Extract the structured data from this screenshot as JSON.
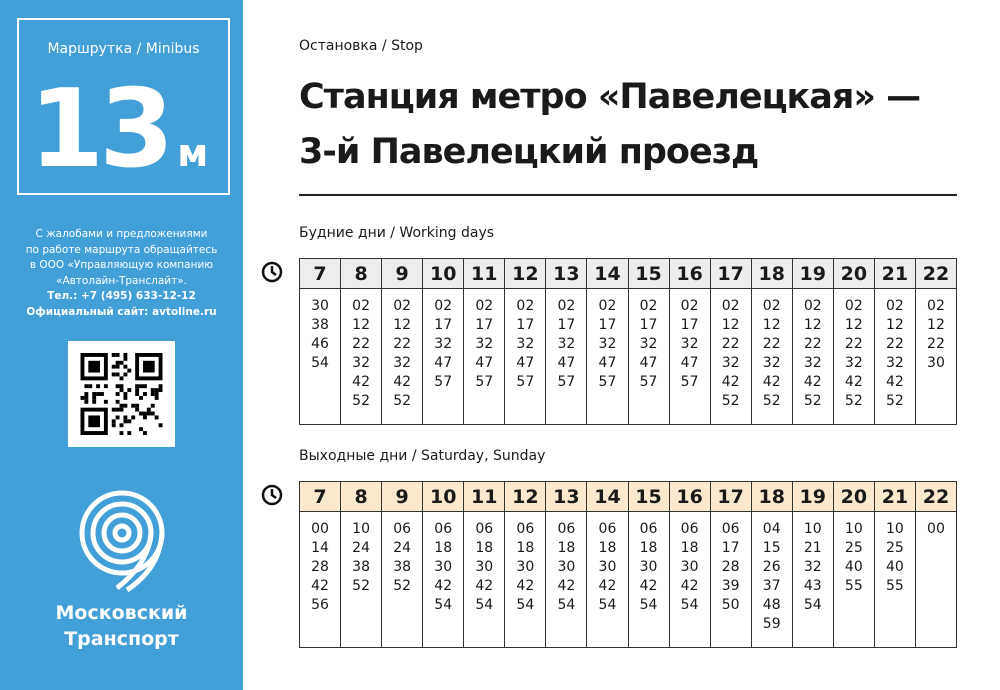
{
  "sidebar": {
    "route_label": "Маршрутка / Minibus",
    "route_number": "13",
    "route_suffix": "м",
    "info_lines": [
      "С жалобами и предложениями",
      "по работе маршрута обращайтесь",
      "в ООО «Управляющую компанию",
      "«Автолайн-Транслайт»."
    ],
    "phone": "Тел.: +7 (495) 633-12-12",
    "website": "Официальный сайт: avtoline.ru",
    "brand_line1": "Московский",
    "brand_line2": "Транспорт",
    "accent_color": "#429fd8"
  },
  "stop": {
    "label": "Остановка / Stop",
    "title_line1": "Станция метро «Павелецкая» —",
    "title_line2": "3-й Павелецкий проезд"
  },
  "weekdays": {
    "label": "Будние дни / Working days",
    "hours": [
      "7",
      "8",
      "9",
      "10",
      "11",
      "12",
      "13",
      "14",
      "15",
      "16",
      "17",
      "18",
      "19",
      "20",
      "21",
      "22"
    ],
    "minutes": [
      [
        "30",
        "38",
        "46",
        "54"
      ],
      [
        "02",
        "12",
        "22",
        "32",
        "42",
        "52"
      ],
      [
        "02",
        "12",
        "22",
        "32",
        "42",
        "52"
      ],
      [
        "02",
        "17",
        "32",
        "47",
        "57"
      ],
      [
        "02",
        "17",
        "32",
        "47",
        "57"
      ],
      [
        "02",
        "17",
        "32",
        "47",
        "57"
      ],
      [
        "02",
        "17",
        "32",
        "47",
        "57"
      ],
      [
        "02",
        "17",
        "32",
        "47",
        "57"
      ],
      [
        "02",
        "17",
        "32",
        "47",
        "57"
      ],
      [
        "02",
        "17",
        "32",
        "47",
        "57"
      ],
      [
        "02",
        "12",
        "22",
        "32",
        "42",
        "52"
      ],
      [
        "02",
        "12",
        "22",
        "32",
        "42",
        "52"
      ],
      [
        "02",
        "12",
        "22",
        "32",
        "42",
        "52"
      ],
      [
        "02",
        "12",
        "22",
        "32",
        "42",
        "52"
      ],
      [
        "02",
        "12",
        "22",
        "32",
        "42",
        "52"
      ],
      [
        "02",
        "12",
        "22",
        "30"
      ]
    ]
  },
  "weekends": {
    "label": "Выходные дни / Saturday, Sunday",
    "hours": [
      "7",
      "8",
      "9",
      "10",
      "11",
      "12",
      "13",
      "14",
      "15",
      "16",
      "17",
      "18",
      "19",
      "20",
      "21",
      "22"
    ],
    "minutes": [
      [
        "00",
        "14",
        "28",
        "42",
        "56"
      ],
      [
        "10",
        "24",
        "38",
        "52"
      ],
      [
        "06",
        "24",
        "38",
        "52"
      ],
      [
        "06",
        "18",
        "30",
        "42",
        "54"
      ],
      [
        "06",
        "18",
        "30",
        "42",
        "54"
      ],
      [
        "06",
        "18",
        "30",
        "42",
        "54"
      ],
      [
        "06",
        "18",
        "30",
        "42",
        "54"
      ],
      [
        "06",
        "18",
        "30",
        "42",
        "54"
      ],
      [
        "06",
        "18",
        "30",
        "42",
        "54"
      ],
      [
        "06",
        "18",
        "30",
        "42",
        "54"
      ],
      [
        "06",
        "17",
        "28",
        "39",
        "50"
      ],
      [
        "04",
        "15",
        "26",
        "37",
        "48",
        "59"
      ],
      [
        "10",
        "21",
        "32",
        "43",
        "54"
      ],
      [
        "10",
        "25",
        "40",
        "55"
      ],
      [
        "10",
        "25",
        "40",
        "55"
      ],
      [
        "00"
      ]
    ]
  }
}
